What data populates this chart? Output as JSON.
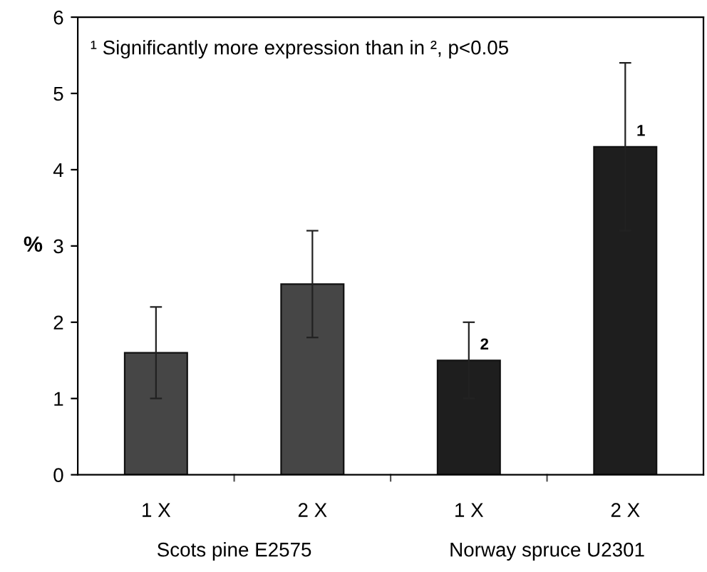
{
  "chart_data": {
    "type": "bar",
    "ylabel": "%",
    "categories": [
      "1 X",
      "2 X",
      "1 X",
      "2 X"
    ],
    "values": [
      1.6,
      2.5,
      1.5,
      4.3
    ],
    "colors": [
      "#464646",
      "#464646",
      "#1e1e1e",
      "#1e1e1e"
    ],
    "errors": [
      0.6,
      0.7,
      0.5,
      1.1
    ],
    "ylim": [
      0,
      6
    ],
    "yticks": [
      0,
      1,
      2,
      3,
      4,
      5,
      6
    ],
    "annotations": [
      "¹ Significantly more expression than in ², p<0.05",
      "Scots pine E2575",
      "Norway spruce U2301",
      "2",
      "1"
    ],
    "grid": false,
    "legend": false
  }
}
